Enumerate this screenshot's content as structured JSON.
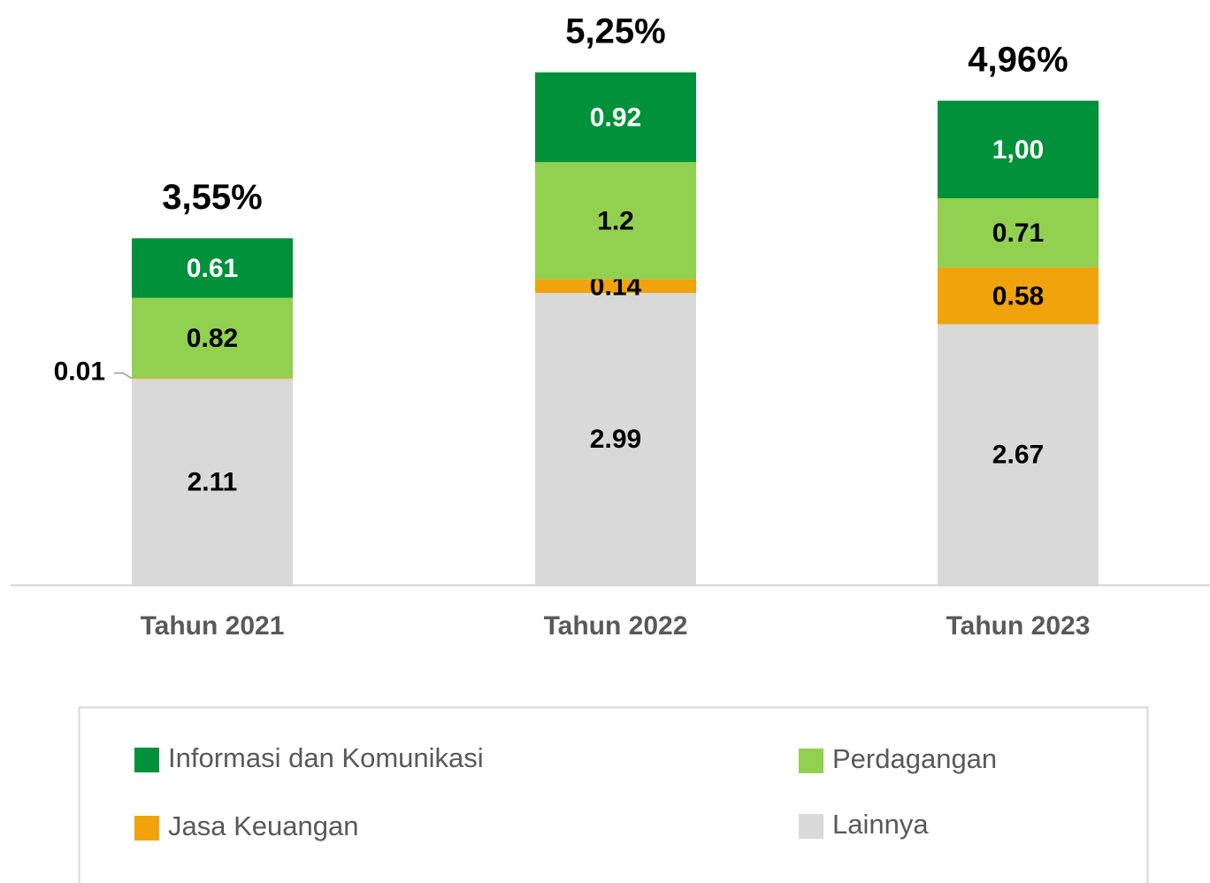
{
  "chart_data": {
    "type": "stacked_bar",
    "categories": [
      "Tahun 2021",
      "Tahun 2022",
      "Tahun 2023"
    ],
    "series": [
      {
        "name": "Lainnya",
        "color": "#d9d9d9",
        "values": [
          2.11,
          2.99,
          2.67
        ]
      },
      {
        "name": "Jasa Keuangan",
        "color": "#f0a30a",
        "values": [
          0.01,
          0.14,
          0.58
        ]
      },
      {
        "name": "Perdagangan",
        "color": "#92d050",
        "values": [
          0.82,
          1.2,
          0.71
        ]
      },
      {
        "name": "Informasi dan Komunikasi",
        "color": "#00913a",
        "values": [
          0.61,
          0.92,
          1.0
        ],
        "value_labels": [
          "0.61",
          "0.92",
          "1,00"
        ]
      }
    ],
    "totals": [
      3.55,
      5.25,
      4.96
    ],
    "total_labels": [
      "3,55%",
      "5,25%",
      "4,96%"
    ],
    "ylim": [
      0,
      6
    ],
    "legend": "bottom"
  }
}
